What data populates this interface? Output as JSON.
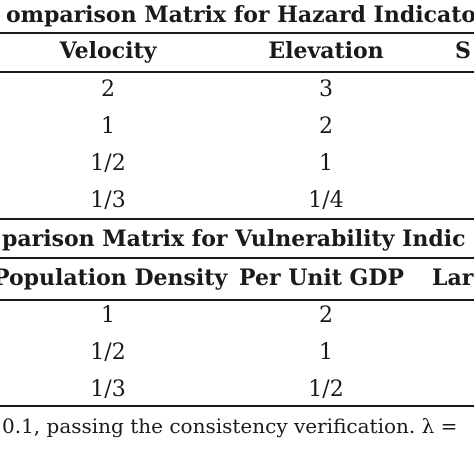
{
  "hazard": {
    "title": "omparison Matrix for Hazard Indicato",
    "headers": [
      "Velocity",
      "Elevation",
      "S"
    ],
    "rows": [
      [
        "2",
        "3"
      ],
      [
        "1",
        "2"
      ],
      [
        "1/2",
        "1"
      ],
      [
        "1/3",
        "1/4"
      ]
    ]
  },
  "vulnerability": {
    "title": "parison Matrix for Vulnerability Indic",
    "headers": [
      "Population Density",
      "Per Unit GDP",
      "Lar"
    ],
    "rows": [
      [
        "1",
        "2"
      ],
      [
        "1/2",
        "1"
      ],
      [
        "1/3",
        "1/2"
      ]
    ]
  },
  "footnote": "0.1, passing the consistency verification. λ ="
}
